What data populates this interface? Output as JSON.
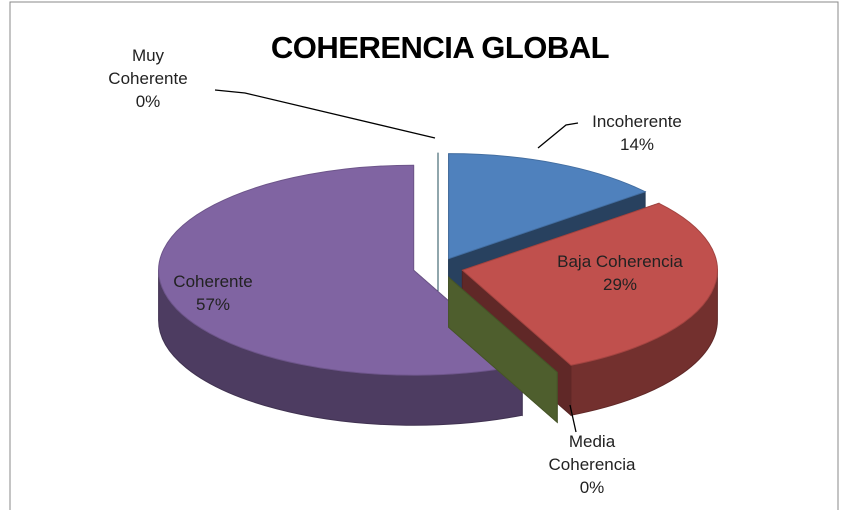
{
  "chart_data": {
    "type": "pie3d",
    "title": "COHERENCIA GLOBAL",
    "categories": [
      "Incoherente",
      "Baja Coherencia",
      "Media Coherencia",
      "Coherente",
      "Muy Coherente"
    ],
    "values": [
      14,
      29,
      0,
      57,
      0
    ],
    "value_labels": [
      "14%",
      "29%",
      "0%",
      "57%",
      "0%"
    ],
    "colors": [
      "#4f81bd",
      "#c0504d",
      "#9bbb59",
      "#8064a2",
      "#4bacc6"
    ]
  }
}
